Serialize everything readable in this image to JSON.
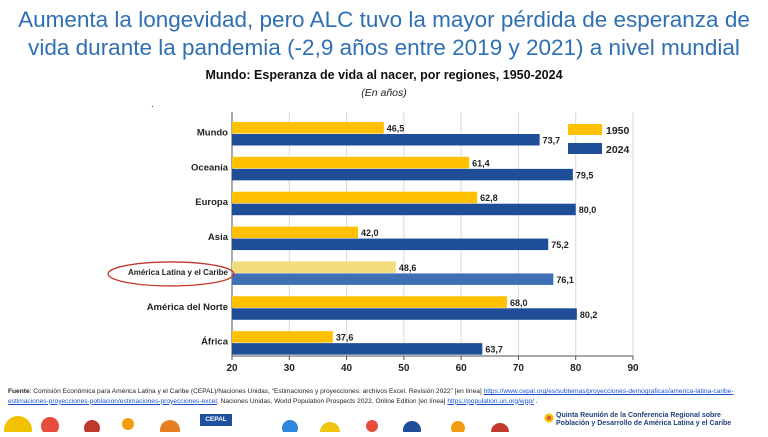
{
  "slide": {
    "title": "Aumenta la longevidad, pero ALC tuvo la mayor pérdida de esperanza de vida durante la pandemia (-2,9 años entre 2019 y 2021) a nivel mundial"
  },
  "chart_data": {
    "type": "bar",
    "orientation": "horizontal",
    "title": "Mundo: Esperanza de vida al nacer, por regiones, 1950-2024",
    "subtitle": "(En años)",
    "categories": [
      "Mundo",
      "Oceanía",
      "Europa",
      "Asia",
      "América Latina y el Caribe",
      "América del Norte",
      "África"
    ],
    "series": [
      {
        "name": "1950",
        "values": [
          46.5,
          61.4,
          62.8,
          42.0,
          48.6,
          68.0,
          37.6
        ],
        "labels": [
          "46,5",
          "61,4",
          "62,8",
          "42,0",
          "48,6",
          "68,0",
          "37,6"
        ]
      },
      {
        "name": "2024",
        "values": [
          73.7,
          79.5,
          80.0,
          75.2,
          76.1,
          80.2,
          63.7
        ],
        "labels": [
          "73,7",
          "79,5",
          "80,0",
          "75,2",
          "76,1",
          "80,2",
          "63,7"
        ]
      }
    ],
    "xlim": [
      20,
      90
    ],
    "xticks": [
      "20",
      "30",
      "40",
      "50",
      "60",
      "70",
      "80",
      "90"
    ],
    "highlight_category": "América Latina y el Caribe",
    "legend_position": "top-right",
    "colors": {
      "1950": "#ffc000",
      "2024": "#1f4e99",
      "1950_highlight": "#f3dc7e",
      "2024_highlight": "#3f6fb5",
      "circle": "#c0392b"
    }
  },
  "source": {
    "label": "Fuente",
    "text1": ": Comisión Económica para América Latina y el Caribe (CEPAL)/Naciones Unidas, “Estimaciones y proyecciones: archivos Excel. Revisión 2022” [en línea] ",
    "link1": "https://www.cepal.org/es/subtemas/proyecciones-demograficas/america-latina-caribe-estimaciones-proyecciones-poblacion/estimaciones-proyecciones-excel",
    "text2": "; Naciones Unidas, World Population Prospects 2022, Online Edition [en línea] ",
    "link2": "https://population.un.org/wpp/",
    "text3": " ."
  },
  "footer": {
    "logo": "CEPAL",
    "line1": "Quinta Reunión de la Conferencia Regional sobre",
    "line2": "Población y Desarrollo de América Latina y el Caribe"
  }
}
